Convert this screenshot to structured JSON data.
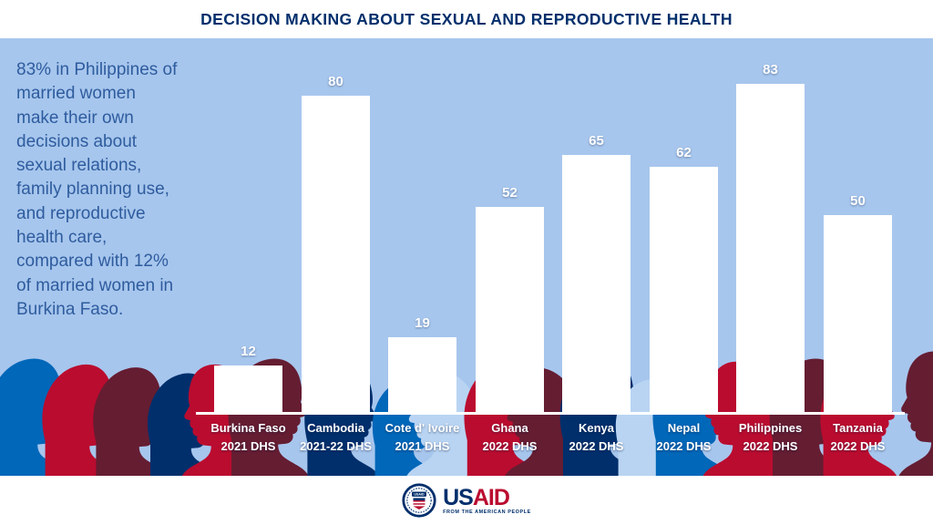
{
  "header": {
    "title": "DECISION MAKING ABOUT SEXUAL AND REPRODUCTIVE HEALTH"
  },
  "annotation": {
    "lines": [
      "83% in Philippines of",
      "married women",
      "make their own",
      "decisions about",
      "sexual relations,",
      "family planning use,",
      "and reproductive",
      "health care,",
      "compared with 12%",
      "of married women in",
      "Burkina Faso."
    ]
  },
  "chart_data": {
    "type": "bar",
    "title": "DECISION MAKING ABOUT SEXUAL AND REPRODUCTIVE HEALTH",
    "categories": [
      "Burkina Faso",
      "Cambodia",
      "Cote d' Ivoire",
      "Ghana",
      "Kenya",
      "Nepal",
      "Philippines",
      "Tanzania"
    ],
    "survey_labels": [
      "2021 DHS",
      "2021-22 DHS",
      "2021 DHS",
      "2022 DHS",
      "2022 DHS",
      "2022 DHS",
      "2022 DHS",
      "2022 DHS"
    ],
    "values": [
      12,
      80,
      19,
      52,
      65,
      62,
      83,
      50
    ],
    "unit": "percent of married women",
    "ylim": [
      0,
      100
    ],
    "grid": false,
    "legend": "none",
    "bar_color": "#FFFFFF",
    "value_label_color": "#FFFFFF",
    "xlabel": "",
    "ylabel": ""
  },
  "footer": {
    "logo": {
      "seal_text": "USAID",
      "wordmark_us": "US",
      "wordmark_aid": "AID",
      "tagline": "FROM THE AMERICAN PEOPLE"
    }
  },
  "colors": {
    "chart_background": "#A7C6ED",
    "title_navy": "#002F6C",
    "annotation_blue": "#2E5C9E",
    "usaid_red": "#BA0C2F",
    "dark_red": "#651D32",
    "medium_blue": "#0067B9",
    "navy": "#002F6C",
    "light_blue_silhouette": "#B9D4F2",
    "bar_white": "#FFFFFF"
  }
}
